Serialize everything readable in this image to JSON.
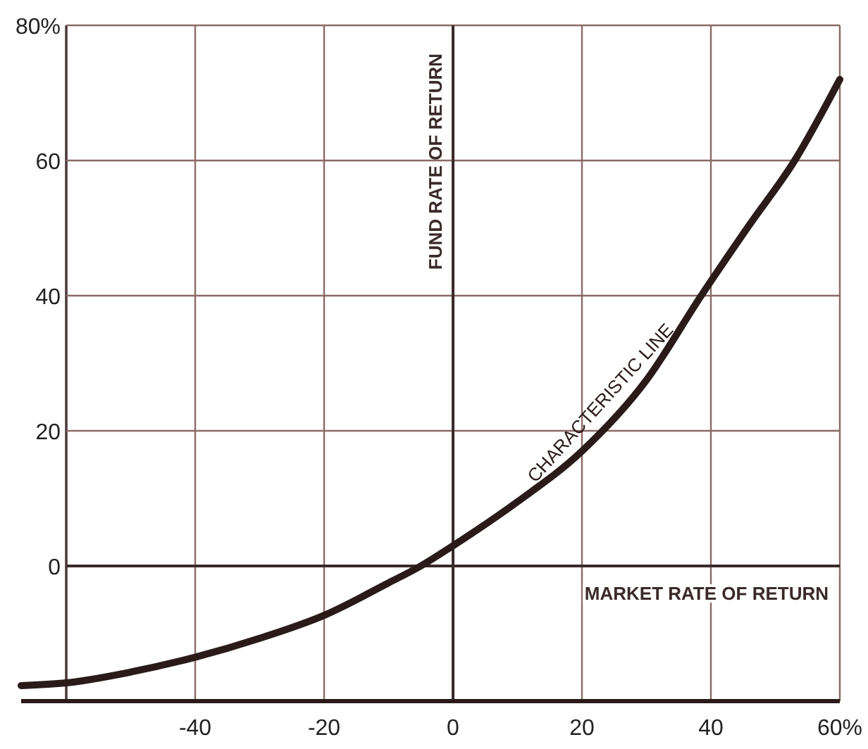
{
  "chart_data": {
    "type": "line",
    "xlim": [
      -67,
      60
    ],
    "ylim": [
      -20,
      80
    ],
    "xticks": [
      {
        "value": -60,
        "label": null
      },
      -40,
      -20,
      0,
      20,
      40,
      {
        "value": 60,
        "label": "60%"
      }
    ],
    "yticks": [
      0,
      20,
      40,
      60,
      {
        "value": 80,
        "label": "80%"
      }
    ],
    "grid": true,
    "marker": "none",
    "line_style": "solid",
    "series": [
      {
        "name": "CHARACTERISTIC LINE",
        "color": "#2a1a1a",
        "x": [
          -67,
          -60,
          -50,
          -40,
          -30,
          -20,
          -10,
          -5,
          0,
          10,
          20,
          30,
          38.5,
          46,
          53,
          60
        ],
        "values": [
          -17.7,
          -17.3,
          -15.7,
          -13.5,
          -10.7,
          -7.3,
          -2.5,
          0,
          3,
          9.5,
          17,
          27.5,
          40,
          50.5,
          60,
          72
        ]
      }
    ],
    "xlabel": "MARKET RATE OF RETURN",
    "ylabel": "FUND RATE OF RETURN"
  }
}
